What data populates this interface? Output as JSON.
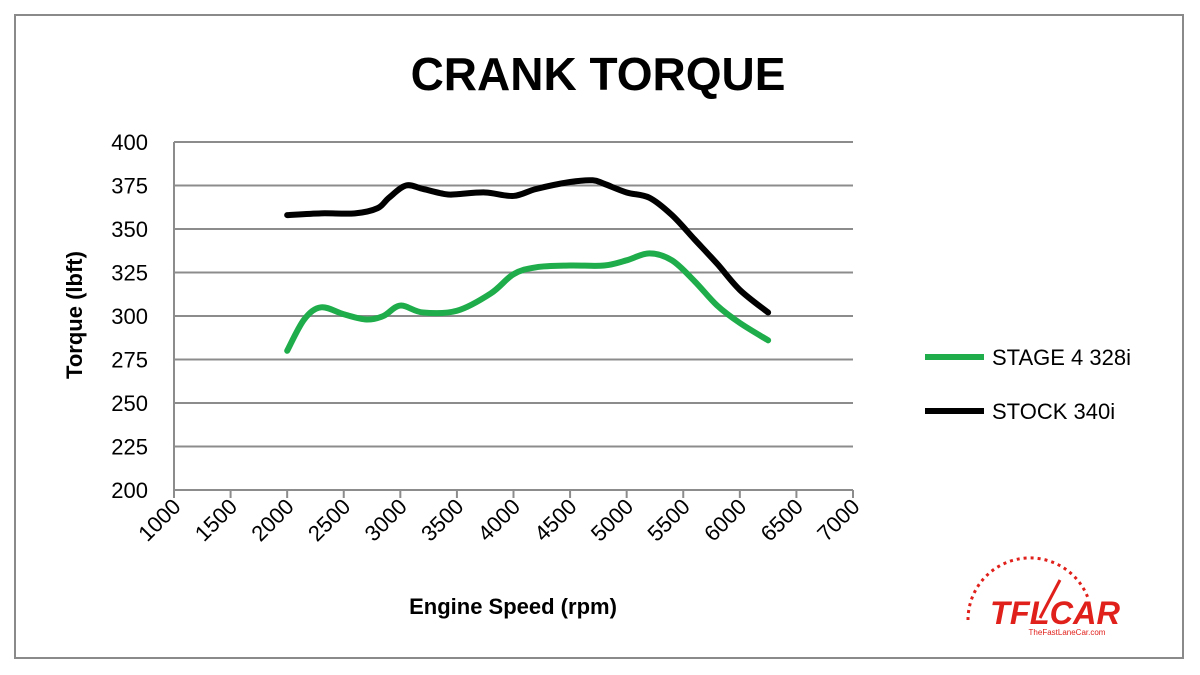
{
  "chart_data": {
    "type": "line",
    "title": "CRANK TORQUE",
    "xlabel": "Engine Speed (rpm)",
    "ylabel": "Torque (lbft)",
    "xlim": [
      1000,
      7000
    ],
    "ylim": [
      200,
      400
    ],
    "x_ticks": [
      "1000",
      "1500",
      "2000",
      "2500",
      "3000",
      "3500",
      "4000",
      "4500",
      "5000",
      "5500",
      "6000",
      "6500",
      "7000"
    ],
    "y_ticks": [
      "200",
      "225",
      "250",
      "275",
      "300",
      "325",
      "350",
      "375",
      "400"
    ],
    "grid": "horizontal",
    "legend_position": "right",
    "series": [
      {
        "name": "STAGE 4 328i",
        "color": "#1fad4b",
        "x": [
          2000,
          2150,
          2300,
          2500,
          2700,
          2850,
          3000,
          3200,
          3500,
          3800,
          4000,
          4200,
          4500,
          4800,
          5000,
          5200,
          5400,
          5600,
          5800,
          6000,
          6250
        ],
        "y": [
          280,
          298,
          305,
          301,
          298,
          300,
          306,
          302,
          303,
          313,
          324,
          328,
          329,
          329,
          332,
          336,
          332,
          320,
          306,
          296,
          286
        ]
      },
      {
        "name": "STOCK 340i",
        "color": "#000000",
        "x": [
          2000,
          2300,
          2600,
          2800,
          2900,
          3050,
          3200,
          3400,
          3500,
          3750,
          4000,
          4200,
          4500,
          4700,
          4800,
          5000,
          5200,
          5400,
          5600,
          5800,
          6000,
          6250
        ],
        "y": [
          358,
          359,
          359,
          362,
          368,
          375,
          373,
          370,
          370,
          371,
          369,
          373,
          377,
          378,
          376,
          371,
          368,
          358,
          344,
          330,
          315,
          302
        ]
      }
    ]
  },
  "logo": {
    "text": "TFLCAR",
    "sub": "TheFastLaneCar.com",
    "color": "#e0201b"
  }
}
